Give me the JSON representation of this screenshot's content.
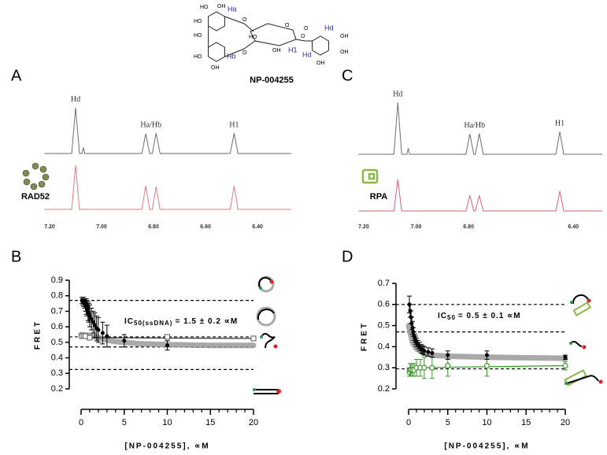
{
  "structure": {
    "name": "NP-004255",
    "labels": [
      "HO",
      "OH",
      "HO",
      "Ha",
      "O",
      "HO",
      "HO",
      "OH",
      "Hb",
      "O",
      "HO",
      "O",
      "OH",
      "H1",
      "O",
      "O",
      "Hd",
      "OH",
      "OH",
      "Hd",
      "OH"
    ]
  },
  "chart_data": [
    {
      "type": "line",
      "panel": "A",
      "protein": "RAD52",
      "xlim": [
        7.22,
        6.27
      ],
      "xticks": [
        {
          "value": 7.2,
          "label": "7.20"
        },
        {
          "value": 7,
          "label": "7.00"
        },
        {
          "value": 6.8,
          "label": "6.80"
        },
        {
          "value": 6.6,
          "label": "6.60"
        },
        {
          "value": 6.4,
          "label": "6.40"
        }
      ],
      "x": [
        7.22,
        7.115,
        7.1,
        7.085,
        7.075,
        7.07,
        7.065,
        6.845,
        6.83,
        6.815,
        6.805,
        6.79,
        6.775,
        6.505,
        6.49,
        6.475,
        6.27
      ],
      "series": [
        {
          "color": "#6e6e6e",
          "values": [
            0,
            0,
            97,
            0,
            0,
            13,
            0,
            0,
            42,
            0,
            0,
            43,
            0,
            0,
            43,
            0,
            0
          ]
        },
        {
          "color": "#e07a82",
          "values": [
            0,
            0,
            93,
            0,
            0,
            0,
            0,
            0,
            50,
            0,
            0,
            48,
            0,
            0,
            50,
            0,
            0
          ]
        }
      ],
      "annotations": [
        {
          "text": "Hd",
          "x": 7.1
        },
        {
          "text": "Ha/Hb",
          "x": 6.81
        },
        {
          "text": "H1",
          "x": 6.49
        }
      ]
    },
    {
      "type": "line",
      "panel": "C",
      "protein": "RPA",
      "xlim": [
        7.22,
        6.29
      ],
      "xticks": [
        {
          "value": 7.2,
          "label": "7.20"
        },
        {
          "value": 7,
          "label": "7.00"
        },
        {
          "value": 6.8,
          "label": "6.80"
        },
        {
          "value": 6.4,
          "label": "6.40"
        }
      ],
      "x": [
        7.22,
        7.085,
        7.07,
        7.055,
        7.035,
        7.03,
        7.025,
        6.81,
        6.795,
        6.78,
        6.774,
        6.759,
        6.744,
        6.467,
        6.452,
        6.437,
        6.29
      ],
      "series": [
        {
          "color": "#6e6e6e",
          "values": [
            0,
            0,
            110,
            0,
            0,
            13,
            0,
            0,
            43,
            0,
            0,
            44,
            0,
            0,
            48,
            0,
            0
          ]
        },
        {
          "color": "#d9607a",
          "values": [
            0,
            0,
            67,
            0,
            0,
            0,
            0,
            0,
            33,
            0,
            0,
            33,
            0,
            0,
            42,
            0,
            0
          ]
        }
      ],
      "annotations": [
        {
          "text": "Hd",
          "x": 7.07
        },
        {
          "text": "Ha/Hb",
          "x": 6.777
        },
        {
          "text": "H1",
          "x": 6.452
        }
      ]
    },
    {
      "type": "scatter",
      "panel": "B",
      "xlabel": "[NP-004255], ∝M",
      "ylabel": "FRET",
      "xlim": [
        0,
        20
      ],
      "xticks": [
        0,
        5,
        10,
        15,
        20
      ],
      "ylim": [
        0.2,
        0.9
      ],
      "yticks": [
        0.2,
        0.3,
        0.4,
        0.5,
        0.6,
        0.7,
        0.8,
        0.9
      ],
      "hlines": [
        0.77,
        0.535,
        0.47,
        0.325
      ],
      "ic50": {
        "prefix": "IC",
        "subscript": "50(ssDNA)",
        "text": "= 1.5 ± 0.2 ∝M"
      },
      "series": [
        {
          "style": "fit",
          "color": "#9a9a9a",
          "x": [
            0,
            1,
            2,
            3,
            4,
            5,
            7,
            10,
            15,
            20
          ],
          "values": [
            0.55,
            0.545,
            0.53,
            0.515,
            0.505,
            0.5,
            0.49,
            0.485,
            0.48,
            0.48
          ]
        },
        {
          "style": "line",
          "color": "#333333",
          "x": [
            0,
            20
          ],
          "values": [
            0.53,
            0.525
          ]
        },
        {
          "style": "open-square",
          "color": "#555555",
          "x": [
            0.1,
            0.3,
            0.5,
            1,
            10,
            20
          ],
          "values": [
            0.54,
            0.54,
            0.54,
            0.53,
            0.535,
            0.525
          ]
        },
        {
          "style": "circle",
          "color": "#000000",
          "x": [
            0.1,
            0.2,
            0.3,
            0.4,
            0.5,
            0.6,
            0.7,
            0.8,
            0.9,
            1,
            1.2,
            1.4,
            1.6,
            1.8,
            2,
            2.5,
            3,
            5,
            10
          ],
          "values": [
            0.77,
            0.76,
            0.76,
            0.75,
            0.74,
            0.73,
            0.72,
            0.7,
            0.69,
            0.67,
            0.65,
            0.63,
            0.61,
            0.59,
            0.58,
            0.56,
            0.54,
            0.51,
            0.48
          ],
          "errors": [
            0.02,
            0.02,
            0.03,
            0.03,
            0.04,
            0.05,
            0.05,
            0.06,
            0.06,
            0.07,
            0.07,
            0.07,
            0.08,
            0.08,
            0.08,
            0.07,
            0.07,
            0.04,
            0.03
          ]
        }
      ]
    },
    {
      "type": "scatter",
      "panel": "D",
      "xlabel": "[NP-004255], ∝M",
      "ylabel": "FRET",
      "xlim": [
        0,
        20
      ],
      "xticks": [
        0,
        5,
        10,
        15,
        20
      ],
      "ylim": [
        0.2,
        0.7
      ],
      "yticks": [
        0.2,
        0.3,
        0.4,
        0.5,
        0.6,
        0.7
      ],
      "hlines": [
        0.6,
        0.47,
        0.295
      ],
      "ic50": {
        "prefix": "IC",
        "subscript": "50",
        "text": "= 0.5 ± 0.1 ∝M"
      },
      "series": [
        {
          "style": "fit",
          "color": "#9a9a9a",
          "x": [
            0,
            0.5,
            1,
            2,
            3,
            5,
            10,
            20
          ],
          "values": [
            0.5,
            0.42,
            0.39,
            0.37,
            0.36,
            0.355,
            0.35,
            0.345
          ]
        },
        {
          "style": "line",
          "color": "#3a9a2a",
          "x": [
            0,
            20
          ],
          "values": [
            0.3,
            0.31
          ]
        },
        {
          "style": "open-circle",
          "color": "#3a9a2a",
          "x": [
            0.1,
            0.2,
            0.3,
            0.5,
            0.7,
            1,
            1.5,
            2,
            3,
            5,
            10,
            20
          ],
          "values": [
            0.28,
            0.29,
            0.29,
            0.29,
            0.29,
            0.3,
            0.3,
            0.3,
            0.3,
            0.31,
            0.31,
            0.31
          ],
          "errors": [
            0.02,
            0.03,
            0.03,
            0.03,
            0.03,
            0.04,
            0.04,
            0.05,
            0.05,
            0.05,
            0.05,
            0.02
          ]
        },
        {
          "style": "circle",
          "color": "#000000",
          "x": [
            0.1,
            0.2,
            0.3,
            0.4,
            0.5,
            0.6,
            0.7,
            0.8,
            0.9,
            1,
            1.2,
            1.4,
            1.6,
            1.8,
            2,
            2.5,
            3,
            5,
            10,
            20
          ],
          "values": [
            0.6,
            0.57,
            0.54,
            0.51,
            0.49,
            0.47,
            0.45,
            0.44,
            0.43,
            0.42,
            0.41,
            0.4,
            0.39,
            0.385,
            0.38,
            0.375,
            0.37,
            0.36,
            0.36,
            0.35
          ],
          "errors": [
            0.04,
            0.03,
            0.03,
            0.03,
            0.03,
            0.02,
            0.02,
            0.02,
            0.02,
            0.02,
            0.02,
            0.02,
            0.02,
            0.02,
            0.02,
            0.02,
            0.02,
            0.02,
            0.02,
            0.01
          ]
        }
      ]
    }
  ]
}
